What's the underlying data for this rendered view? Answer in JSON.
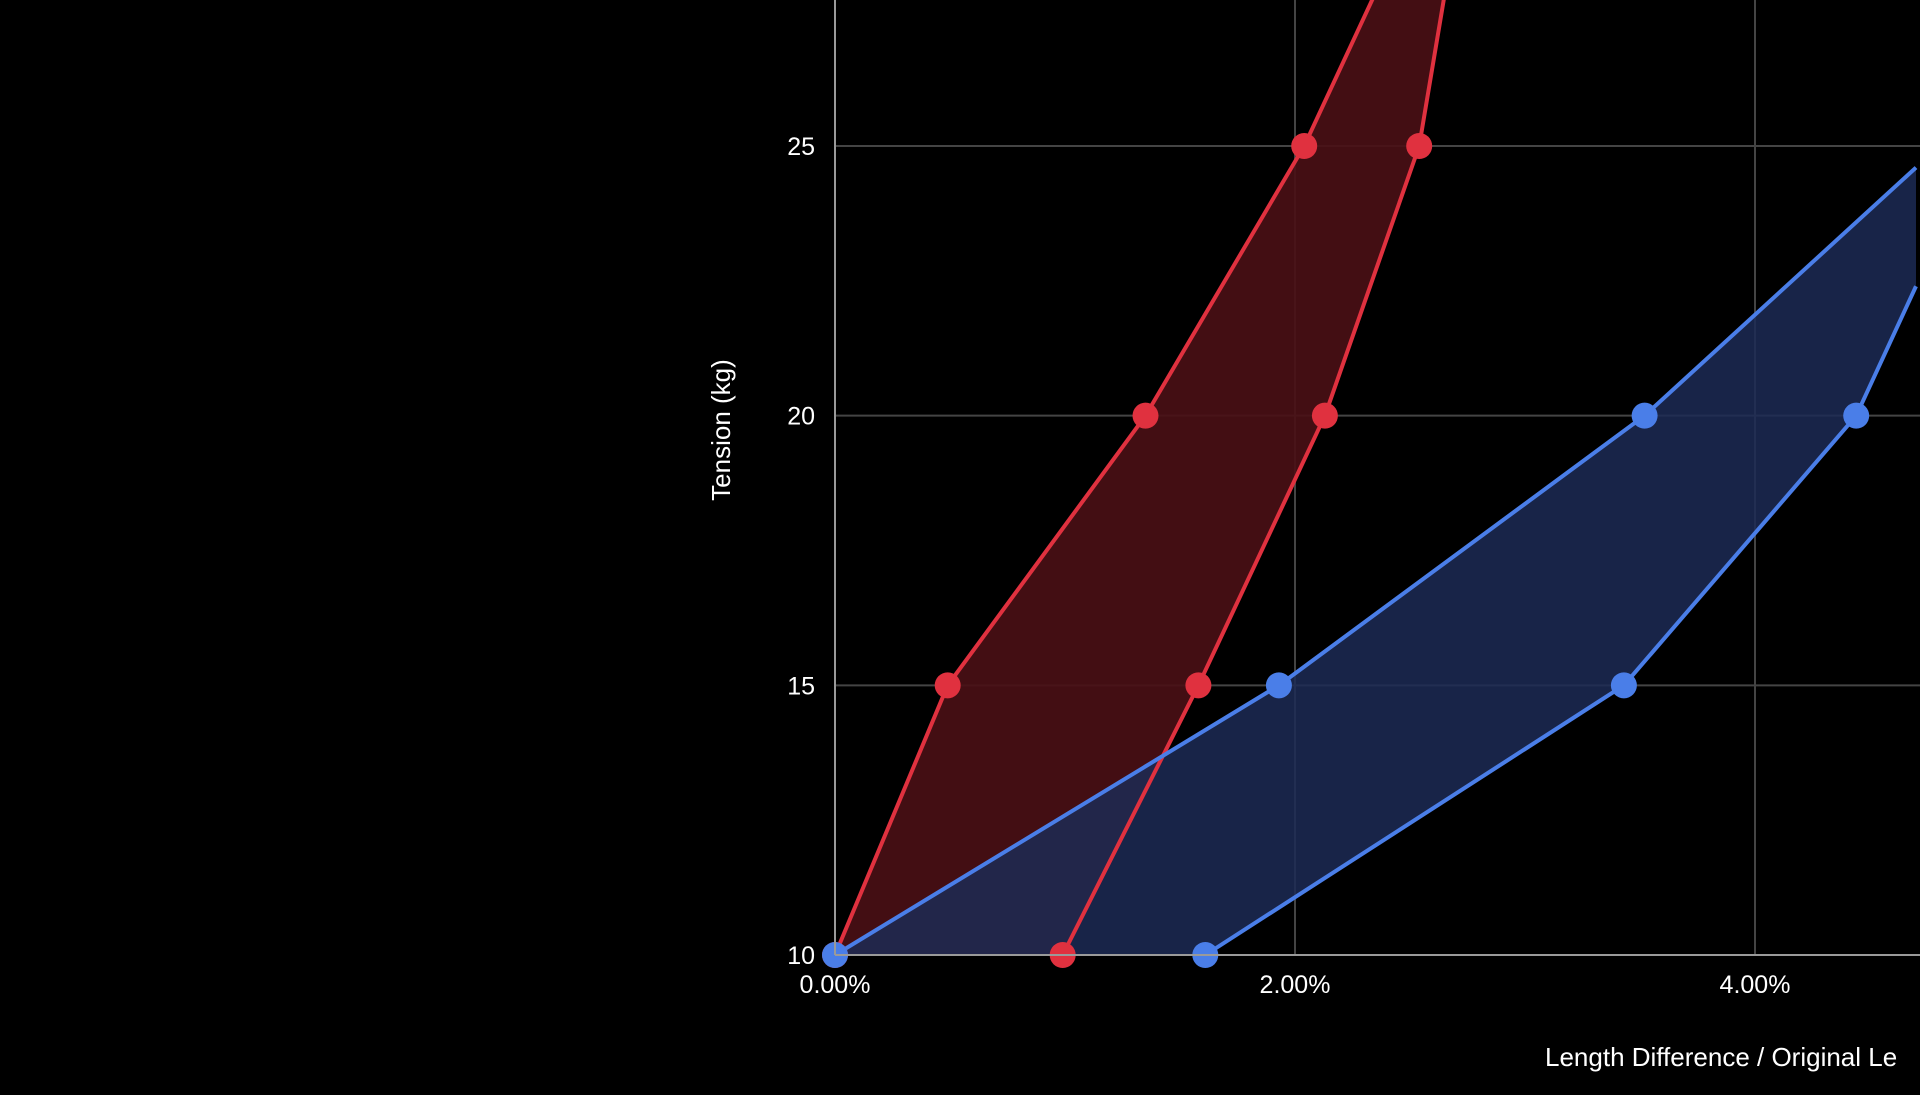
{
  "chart_data": {
    "type": "area",
    "xlabel": "Length Difference / Original Le",
    "ylabel": "Tension (kg)",
    "x_tick_labels": [
      "0.00%",
      "2.00%",
      "4.00%"
    ],
    "x_ticks": [
      0,
      2,
      4
    ],
    "y_tick_labels": [
      "10",
      "15",
      "20",
      "25"
    ],
    "y_ticks": [
      10,
      15,
      20,
      25
    ],
    "xlim": [
      0,
      4.7
    ],
    "ylim": [
      10,
      28.3
    ],
    "grid": true,
    "series": [
      {
        "color": "#e0313f",
        "fill": "#4a1015",
        "fill_opacity": 0.9,
        "points_upper_edge": [
          {
            "x": 0.0,
            "y": 10
          },
          {
            "x": 0.49,
            "y": 15
          },
          {
            "x": 1.35,
            "y": 20
          },
          {
            "x": 2.04,
            "y": 25
          },
          {
            "x": 2.4,
            "y": 28.3
          }
        ],
        "points_lower_edge": [
          {
            "x": 2.67,
            "y": 28.3
          },
          {
            "x": 2.54,
            "y": 25
          },
          {
            "x": 2.13,
            "y": 20
          },
          {
            "x": 1.58,
            "y": 15
          },
          {
            "x": 0.99,
            "y": 10
          }
        ]
      },
      {
        "color": "#4a7ee8",
        "fill": "#1c2a55",
        "fill_opacity": 0.85,
        "points_upper_edge": [
          {
            "x": 0.0,
            "y": 10
          },
          {
            "x": 1.93,
            "y": 15
          },
          {
            "x": 3.52,
            "y": 20
          },
          {
            "x": 4.7,
            "y": 24.6
          }
        ],
        "points_lower_edge": [
          {
            "x": 4.7,
            "y": 22.4
          },
          {
            "x": 4.44,
            "y": 20
          },
          {
            "x": 3.43,
            "y": 15
          },
          {
            "x": 1.61,
            "y": 10
          }
        ]
      }
    ],
    "colors": {
      "background": "#000000",
      "grid": "#444444",
      "axis": "#9a9a9a",
      "text": "#ffffff"
    }
  }
}
